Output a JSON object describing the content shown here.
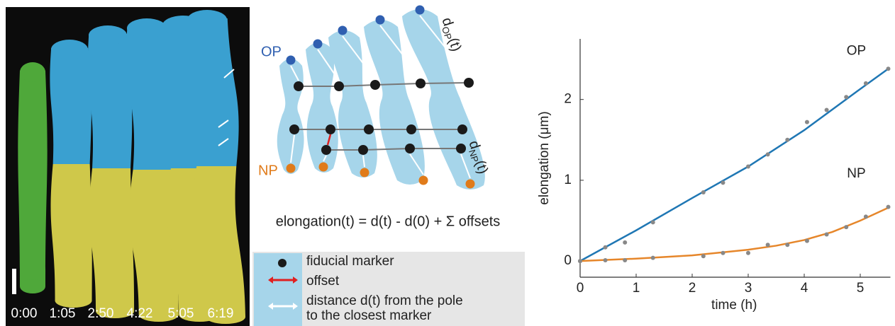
{
  "image": {
    "timestamps": [
      "0:00",
      "1:05",
      "2:50",
      "4:22",
      "5:05",
      "6:19"
    ]
  },
  "diagram": {
    "op_label": "OP",
    "np_label": "NP",
    "d_op": {
      "d": "d",
      "sub": "OP",
      "arg": "(t)"
    },
    "d_np": {
      "d": "d",
      "sub": "NP",
      "arg": "(t)"
    },
    "equation": "elongation(t) = d(t) - d(0) + Σ offsets",
    "legend": [
      [
        "fiducial marker"
      ],
      [
        "offset"
      ],
      [
        "distance d(t) from the pole",
        "to the closest marker"
      ]
    ]
  },
  "chart_data": {
    "type": "line",
    "x_label": "time (h)",
    "y_label": "elongation (μm)",
    "xlim": [
      0,
      5.5
    ],
    "ylim": [
      -0.2,
      2.75
    ],
    "xticks": [
      0,
      1,
      2,
      3,
      4,
      5
    ],
    "yticks": [
      0,
      1,
      2
    ],
    "grid": false,
    "series": [
      {
        "name": "OP",
        "color": "#1f77b4",
        "x": [
          0,
          1,
          2,
          3,
          4,
          5,
          5.5
        ],
        "values": [
          0,
          0.38,
          0.78,
          1.17,
          1.62,
          2.13,
          2.38
        ],
        "markers": {
          "color": "#888888",
          "x": [
            0,
            0.45,
            0.8,
            1.3,
            2.2,
            2.55,
            3,
            3.35,
            3.7,
            4.05,
            4.4,
            4.75,
            5.1,
            5.5
          ],
          "values": [
            0,
            0.17,
            0.23,
            0.48,
            0.85,
            0.97,
            1.17,
            1.32,
            1.5,
            1.72,
            1.87,
            2.03,
            2.2,
            2.38
          ]
        }
      },
      {
        "name": "NP",
        "color": "#e6862a",
        "x": [
          0,
          1,
          2,
          3,
          3.5,
          4,
          4.5,
          5,
          5.5
        ],
        "values": [
          0,
          0.03,
          0.07,
          0.14,
          0.19,
          0.26,
          0.36,
          0.5,
          0.66
        ],
        "markers": {
          "color": "#888888",
          "x": [
            0,
            0.45,
            0.8,
            1.3,
            2.2,
            2.55,
            3,
            3.35,
            3.7,
            4.05,
            4.4,
            4.75,
            5.1,
            5.5
          ],
          "values": [
            0,
            0.01,
            0.01,
            0.04,
            0.06,
            0.1,
            0.1,
            0.2,
            0.2,
            0.25,
            0.33,
            0.42,
            0.55,
            0.67
          ]
        }
      }
    ]
  }
}
